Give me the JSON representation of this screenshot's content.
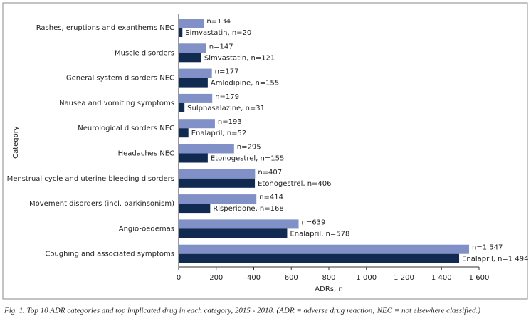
{
  "chart_data": {
    "type": "hbar",
    "caption": "Fig. 1. Top 10 ADR categories and top implicated drug in each category, 2015 - 2018. (ADR = adverse drug reaction; NEC = not elsewhere classified.)",
    "ylabel": "Category",
    "xlabel": "ADRs, n",
    "categories": [
      "Rashes, eruptions and exanthems NEC",
      "Muscle disorders",
      "General system disorders NEC",
      "Nausea and vomiting symptoms",
      "Neurological disorders NEC",
      "Headaches NEC",
      "Menstrual cycle and uterine bleeding disorders",
      "Movement disorders (incl. parkinsonism)",
      "Angio-oedemas",
      "Coughing and associated symptoms"
    ],
    "series": [
      {
        "color": "#8190c6",
        "values": [
          134,
          147,
          177,
          179,
          193,
          295,
          407,
          414,
          639,
          1547
        ],
        "value_labels": [
          "n=134",
          "n=147",
          "n=177",
          "n=179",
          "n=193",
          "n=295",
          "n=407",
          "n=414",
          "n=639",
          "n=1 547"
        ]
      },
      {
        "color": "#102a52",
        "values": [
          20,
          121,
          155,
          31,
          52,
          155,
          406,
          168,
          578,
          1494
        ],
        "value_labels": [
          "Simvastatin, n=20",
          "Simvastatin, n=121",
          "Amlodipine, n=155",
          "Sulphasalazine, n=31",
          "Enalapril, n=52",
          "Etonogestrel, n=155",
          "Etonogestrel, n=406",
          "Risperidone, n=168",
          "Enalapril, n=578",
          "Enalapril, n=1 494"
        ]
      }
    ],
    "xlim": [
      0,
      1600
    ],
    "xticks": [
      0,
      200,
      400,
      600,
      800,
      {
        "value": 1000,
        "label": "1 000"
      },
      {
        "value": 1200,
        "label": "1 200"
      },
      {
        "value": 1400,
        "label": "1 400"
      },
      {
        "value": 1600,
        "label": "1 600"
      }
    ]
  }
}
